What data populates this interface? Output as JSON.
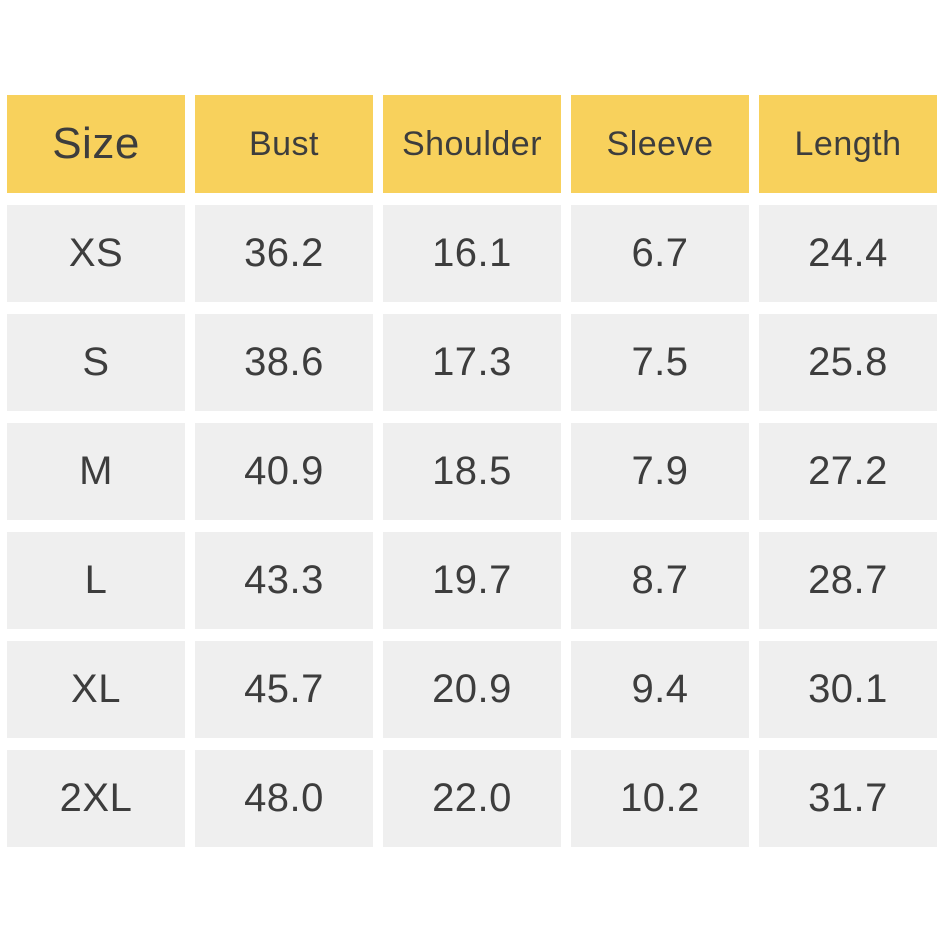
{
  "colors": {
    "background": "#ffffff",
    "header_bg": "#f8d15c",
    "cell_bg": "#efefef",
    "text": "#3d3d3d"
  },
  "chart_data": {
    "type": "table",
    "title": "",
    "columns": [
      "Size",
      "Bust",
      "Shoulder",
      "Sleeve",
      "Length"
    ],
    "rows": [
      [
        "XS",
        "36.2",
        "16.1",
        "6.7",
        "24.4"
      ],
      [
        "S",
        "38.6",
        "17.3",
        "7.5",
        "25.8"
      ],
      [
        "M",
        "40.9",
        "18.5",
        "7.9",
        "27.2"
      ],
      [
        "L",
        "43.3",
        "19.7",
        "8.7",
        "28.7"
      ],
      [
        "XL",
        "45.7",
        "20.9",
        "9.4",
        "30.1"
      ],
      [
        "2XL",
        "48.0",
        "22.0",
        "10.2",
        "31.7"
      ]
    ]
  }
}
